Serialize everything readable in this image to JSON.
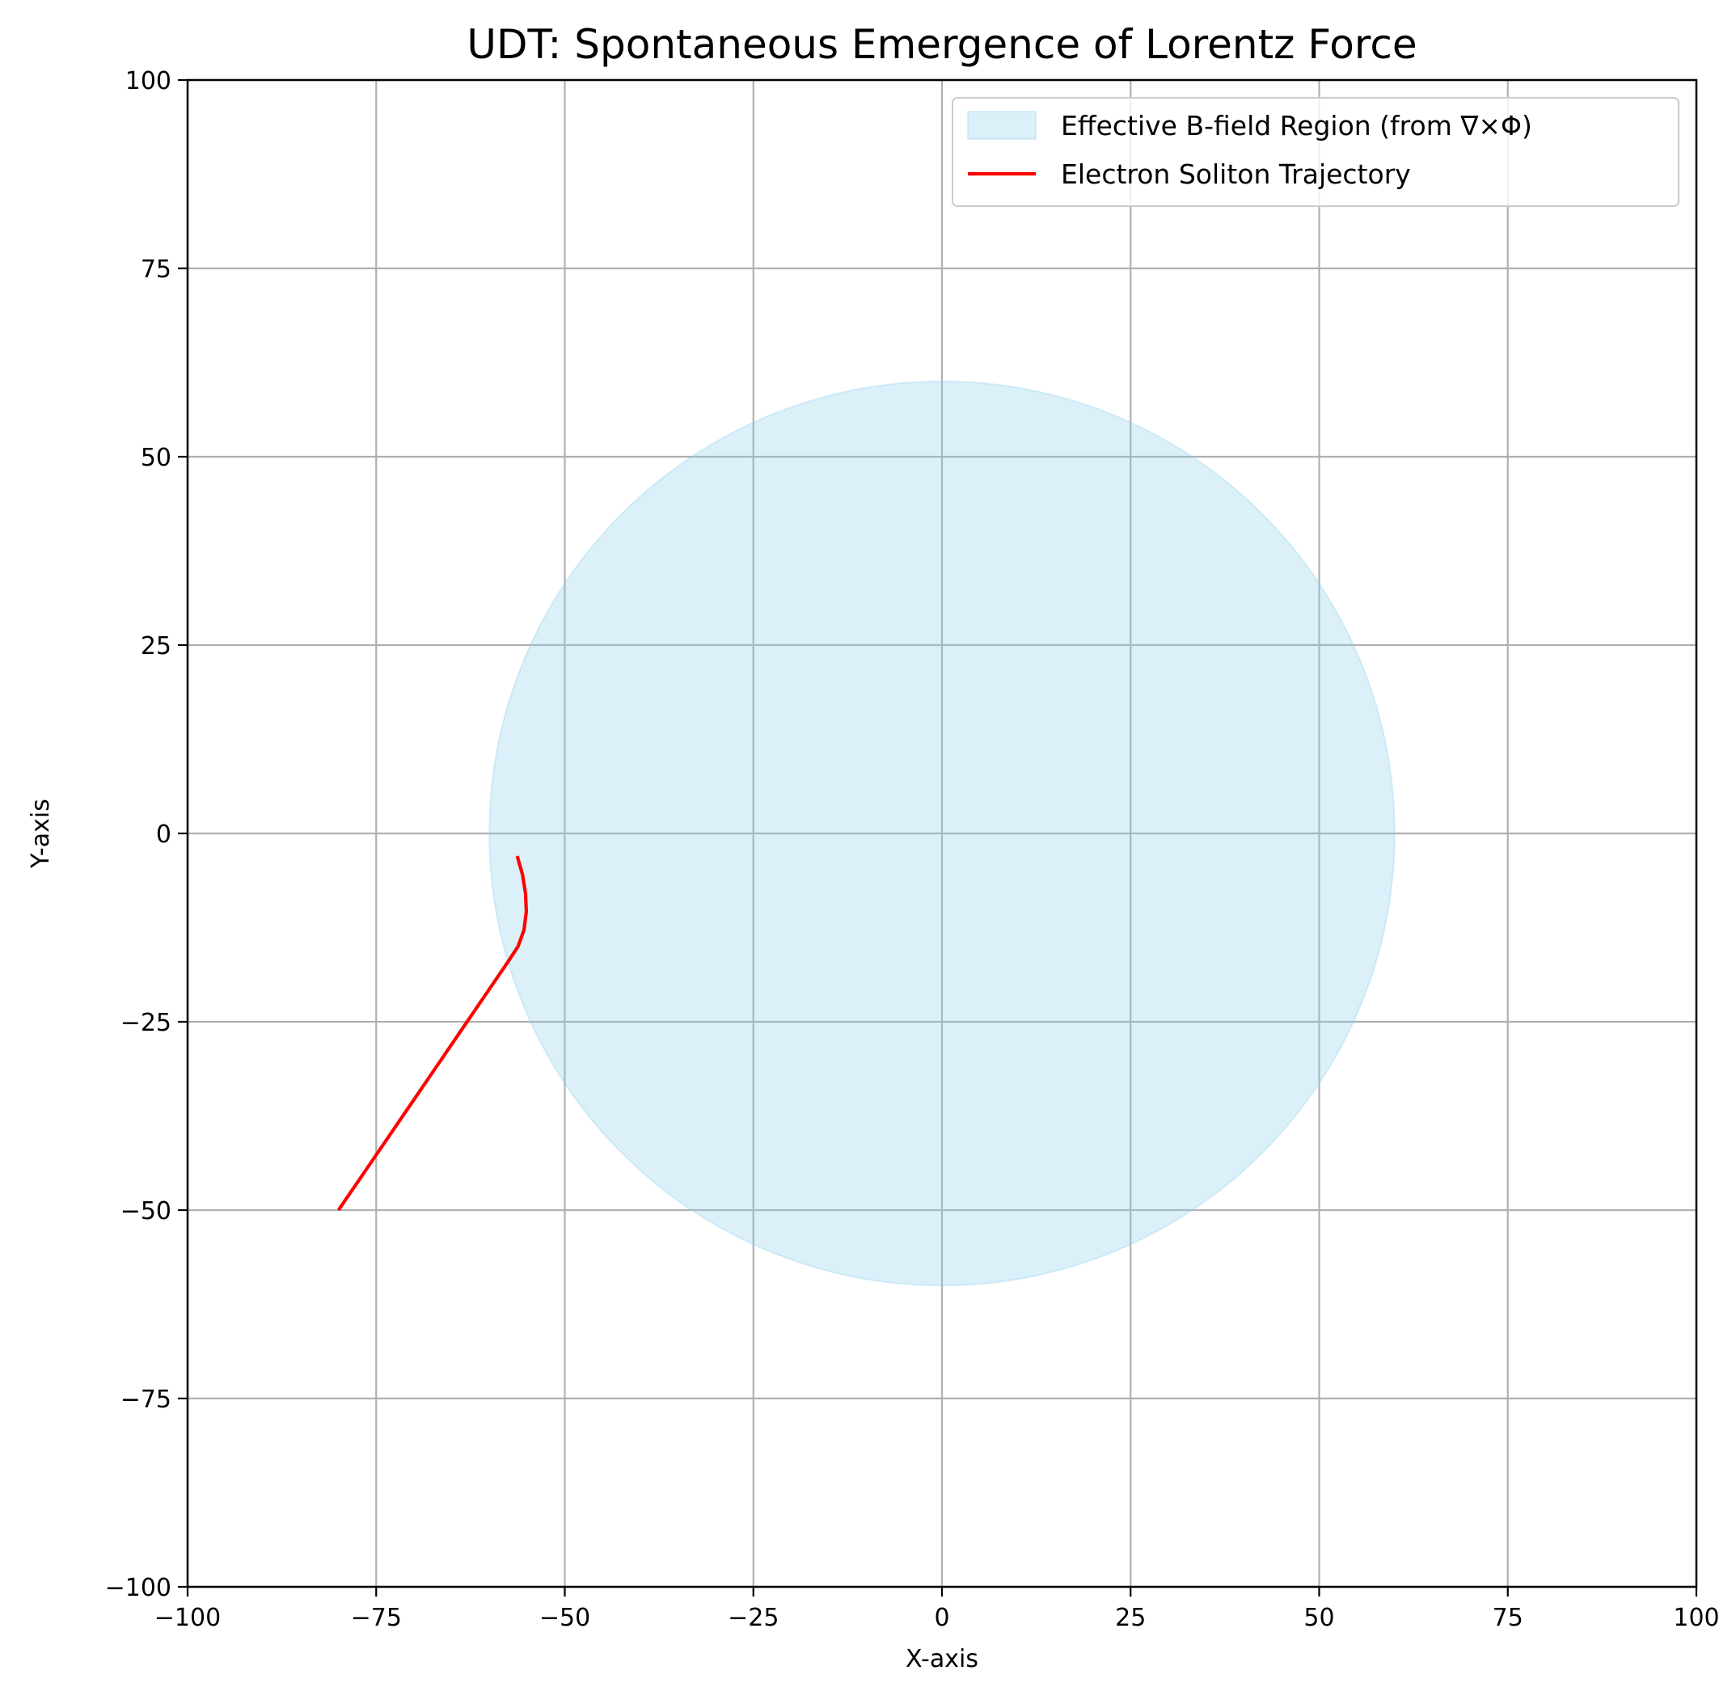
{
  "chart_data": {
    "type": "line",
    "title": "UDT: Spontaneous Emergence of Lorentz Force",
    "xlabel": "X-axis",
    "ylabel": "Y-axis",
    "xlim": [
      -100,
      100
    ],
    "ylim": [
      -100,
      100
    ],
    "xticks": [
      -100,
      -75,
      -50,
      -25,
      0,
      25,
      50,
      75,
      100
    ],
    "yticks": [
      -100,
      -75,
      -50,
      -25,
      0,
      25,
      50,
      75,
      100
    ],
    "xtick_labels": [
      "−100",
      "−75",
      "−50",
      "−25",
      "0",
      "25",
      "50",
      "75",
      "100"
    ],
    "ytick_labels": [
      "−100",
      "−75",
      "−50",
      "−25",
      "0",
      "25",
      "50",
      "75",
      "100"
    ],
    "grid": true,
    "legend_position": "top-right",
    "series": [
      {
        "name": "Effective B-field Region (from ∇×Φ)",
        "kind": "filled-circle",
        "center": [
          0,
          0
        ],
        "radius": 60,
        "color": "#87ceeb",
        "alpha": 0.3
      },
      {
        "name": "Electron Soliton Trajectory",
        "kind": "line",
        "color": "#ff0000",
        "x": [
          -80.0,
          -74.0,
          -68.0,
          -62.0,
          -57.5,
          -56.2,
          -55.4,
          -55.1,
          -55.2,
          -55.6,
          -56.3
        ],
        "y": [
          -50.0,
          -41.2,
          -32.4,
          -23.6,
          -17.0,
          -15.0,
          -12.8,
          -10.4,
          -8.0,
          -5.5,
          -3.0
        ]
      }
    ]
  }
}
